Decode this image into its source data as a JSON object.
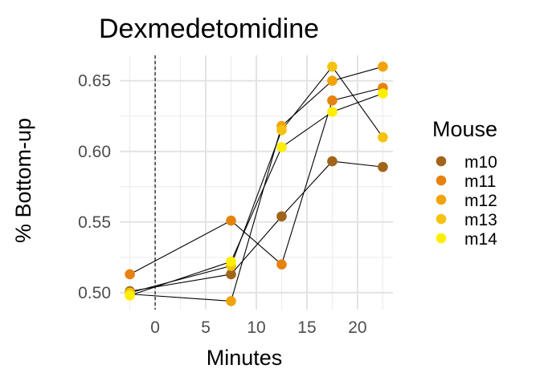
{
  "chart_data": {
    "type": "line",
    "title": "Dexmedetomidine",
    "xlabel": "Minutes",
    "ylabel": "% Bottom-up",
    "xlim": [
      -3.5,
      23.5
    ],
    "ylim": [
      0.488,
      0.668
    ],
    "x_ticks": [
      0,
      5,
      10,
      15,
      20
    ],
    "x_tick_labels": [
      "0",
      "5",
      "10",
      "15",
      "20"
    ],
    "y_ticks": [
      0.5,
      0.55,
      0.6,
      0.65
    ],
    "y_tick_labels": [
      "0.50",
      "0.55",
      "0.60",
      "0.65"
    ],
    "grid": true,
    "reference_line": {
      "x": 0,
      "style": "dashed"
    },
    "legend": {
      "title": "Mouse",
      "position": "right"
    },
    "series": [
      {
        "name": "m10",
        "color": "#a0651a",
        "x": [
          -2.5,
          7.5,
          12.5,
          17.5,
          22.5
        ],
        "y": [
          0.501,
          0.513,
          0.554,
          0.593,
          0.589
        ]
      },
      {
        "name": "m11",
        "color": "#e6820e",
        "x": [
          -2.5,
          7.5,
          12.5,
          17.5,
          22.5
        ],
        "y": [
          0.513,
          0.551,
          0.52,
          0.636,
          0.645
        ]
      },
      {
        "name": "m12",
        "color": "#f0a30a",
        "x": [
          -2.5,
          7.5,
          12.5,
          17.5,
          22.5
        ],
        "y": [
          0.499,
          0.494,
          0.618,
          0.65,
          0.66
        ]
      },
      {
        "name": "m13",
        "color": "#f5c30f",
        "x": [
          -2.5,
          7.5,
          12.5,
          17.5,
          22.5
        ],
        "y": [
          0.5,
          0.519,
          0.615,
          0.66,
          0.61
        ]
      },
      {
        "name": "m14",
        "color": "#ffee00",
        "x": [
          -2.5,
          7.5,
          12.5,
          17.5,
          22.5
        ],
        "y": [
          0.498,
          0.522,
          0.603,
          0.628,
          0.641
        ]
      }
    ]
  }
}
